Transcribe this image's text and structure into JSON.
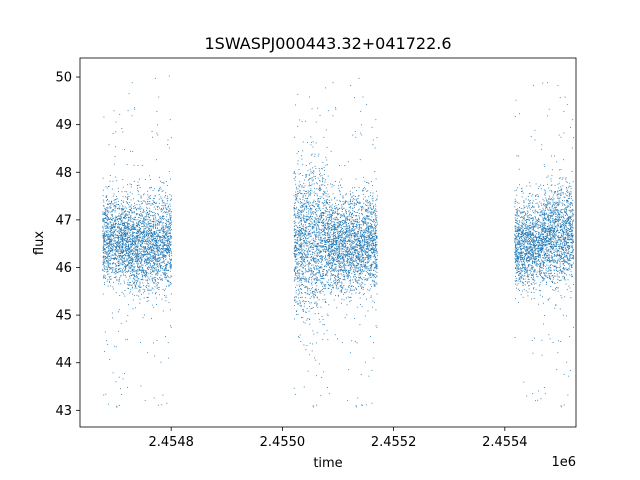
{
  "chart_data": {
    "type": "scatter",
    "title": "1SWASPJ000443.32+041722.6",
    "xlabel": "time",
    "ylabel": "flux",
    "x_offset_label": "1e6",
    "xlim": [
      2454636,
      2455528
    ],
    "ylim": [
      42.65,
      50.4
    ],
    "grid": false,
    "legend": "none",
    "marker_color": "#1f77b4",
    "x_ticks": [
      {
        "value": 2454800,
        "label": "2.4548"
      },
      {
        "value": 2455000,
        "label": "2.4550"
      },
      {
        "value": 2455200,
        "label": "2.4552"
      },
      {
        "value": 2455400,
        "label": "2.4554"
      }
    ],
    "y_ticks": [
      {
        "value": 43,
        "label": "43"
      },
      {
        "value": 44,
        "label": "44"
      },
      {
        "value": 45,
        "label": "45"
      },
      {
        "value": 46,
        "label": "46"
      },
      {
        "value": 47,
        "label": "47"
      },
      {
        "value": 48,
        "label": "48"
      },
      {
        "value": 49,
        "label": "49"
      },
      {
        "value": 50,
        "label": "50"
      }
    ],
    "seasons": [
      {
        "x_start": 2454676,
        "x_end": 2454720,
        "y_center": 46.6,
        "y_spread": 0.45,
        "y_min": 43.0,
        "y_max": 49.5
      },
      {
        "x_start": 2454720,
        "x_end": 2454800,
        "y_center": 46.5,
        "y_spread": 0.5,
        "y_min": 43.0,
        "y_max": 50.05
      },
      {
        "x_start": 2455020,
        "x_end": 2455080,
        "y_center": 46.6,
        "y_spread": 0.75,
        "y_min": 43.0,
        "y_max": 49.8
      },
      {
        "x_start": 2455080,
        "x_end": 2455170,
        "y_center": 46.5,
        "y_spread": 0.5,
        "y_min": 43.0,
        "y_max": 50.05
      },
      {
        "x_start": 2455417,
        "x_end": 2455470,
        "y_center": 46.5,
        "y_spread": 0.45,
        "y_min": 43.1,
        "y_max": 49.9
      },
      {
        "x_start": 2455470,
        "x_end": 2455523,
        "y_center": 46.7,
        "y_spread": 0.5,
        "y_min": 43.0,
        "y_max": 50.05
      }
    ]
  }
}
